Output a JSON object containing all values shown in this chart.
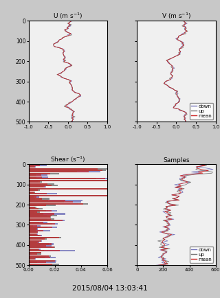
{
  "title": "2015/08/04 13:03:41",
  "depth_ticks": [
    0,
    100,
    200,
    300,
    400,
    500
  ],
  "u_title": "U (m s$^{-1}$)",
  "u_xlim": [
    -1.0,
    1.0
  ],
  "u_xticks": [
    -1.0,
    -0.5,
    0.0,
    0.5,
    1.0
  ],
  "u_xticklabels": [
    "-1.0",
    "-0.5",
    "0.0",
    "0.5",
    "1.0"
  ],
  "v_title": "V (m s$^{-1}$)",
  "v_xlim": [
    -1.0,
    1.0
  ],
  "v_xticks": [
    -1.0,
    -0.5,
    0.0,
    0.5,
    1.0
  ],
  "v_xticklabels": [
    "-1.0",
    "-0.5",
    "0.0",
    "0.5",
    "1.0"
  ],
  "shear_title": "Shear (s$^{-1}$)",
  "shear_xlim": [
    0.0,
    0.06
  ],
  "shear_xticks": [
    0.0,
    0.02,
    0.04,
    0.06
  ],
  "shear_xticklabels": [
    "0.00",
    "0.02",
    "0.04",
    "0.06"
  ],
  "samples_title": "Samples",
  "samples_xlim": [
    0,
    600
  ],
  "samples_xticks": [
    0,
    200,
    400,
    600
  ],
  "samples_xticklabels": [
    "0",
    "200",
    "400",
    "600"
  ],
  "color_down": "#7777bb",
  "color_up": "#777777",
  "color_mean": "#cc2222",
  "legend_labels": [
    "down",
    "up",
    "mean"
  ],
  "background_color": "#c8c8c8",
  "axes_facecolor": "#f0f0f0"
}
